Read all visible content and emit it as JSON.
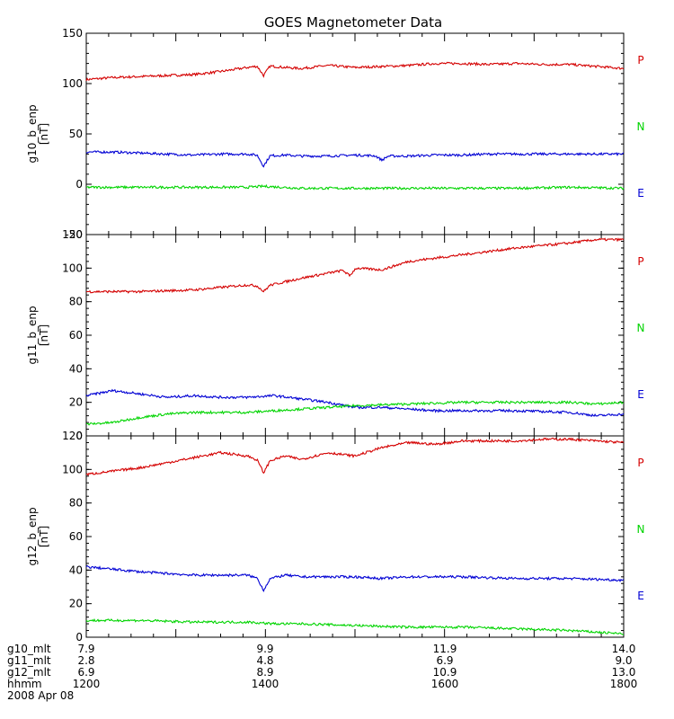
{
  "chart_data": {
    "type": "line",
    "title": "GOES Magnetometer Data",
    "x": {
      "hhmm_ticks": [
        "1200",
        "1400",
        "1600",
        "1800"
      ],
      "range_hhmm": [
        "1200",
        "1800"
      ],
      "date": "2008 Apr 08"
    },
    "rows": [
      {
        "label": "g10_mlt",
        "values": [
          "7.9",
          "9.9",
          "11.9",
          "14.0"
        ]
      },
      {
        "label": "g11_mlt",
        "values": [
          "2.8",
          "4.8",
          "6.9",
          "9.0"
        ]
      },
      {
        "label": "g12_mlt",
        "values": [
          "6.9",
          "8.9",
          "10.9",
          "13.0"
        ]
      },
      {
        "label": "hhmm",
        "values": [
          "1200",
          "1400",
          "1600",
          "1800"
        ]
      }
    ],
    "date_label": "2008 Apr 08",
    "colors": {
      "P": "#d40000",
      "N": "#00d400",
      "E": "#0000d4"
    },
    "panels": [
      {
        "ylabel": "g10_b_enp",
        "unit": "[nT]",
        "ylim": [
          -50,
          150
        ],
        "ticks": [
          "150",
          "100",
          "50",
          "0",
          "-50"
        ],
        "tick_values": [
          150,
          100,
          50,
          0,
          -50
        ],
        "legend": [
          "P",
          "N",
          "E"
        ],
        "series": [
          {
            "name": "P",
            "points": [
              [
                0,
                104
              ],
              [
                0.05,
                106
              ],
              [
                0.1,
                107
              ],
              [
                0.15,
                108
              ],
              [
                0.2,
                109
              ],
              [
                0.25,
                112
              ],
              [
                0.3,
                116
              ],
              [
                0.33,
                118
              ],
              [
                0.37,
                116
              ],
              [
                0.4,
                115
              ],
              [
                0.45,
                118
              ],
              [
                0.5,
                116
              ],
              [
                0.55,
                117
              ],
              [
                0.6,
                118
              ],
              [
                0.65,
                120
              ],
              [
                0.7,
                120
              ],
              [
                0.75,
                119
              ],
              [
                0.8,
                120
              ],
              [
                0.85,
                119
              ],
              [
                0.9,
                119
              ],
              [
                0.95,
                117
              ],
              [
                1,
                115
              ]
            ],
            "dips": [
              [
                0.33,
                -10
              ]
            ]
          },
          {
            "name": "E",
            "points": [
              [
                0,
                32
              ],
              [
                0.05,
                32
              ],
              [
                0.1,
                31
              ],
              [
                0.15,
                30
              ],
              [
                0.2,
                29
              ],
              [
                0.25,
                30
              ],
              [
                0.3,
                30
              ],
              [
                0.33,
                28
              ],
              [
                0.37,
                29
              ],
              [
                0.4,
                28
              ],
              [
                0.45,
                28
              ],
              [
                0.5,
                29
              ],
              [
                0.55,
                28
              ],
              [
                0.6,
                28
              ],
              [
                0.65,
                29
              ],
              [
                0.7,
                29
              ],
              [
                0.75,
                30
              ],
              [
                0.8,
                30
              ],
              [
                0.85,
                30
              ],
              [
                0.9,
                30
              ],
              [
                0.95,
                30
              ],
              [
                1,
                30
              ]
            ],
            "dips": [
              [
                0.33,
                -10
              ],
              [
                0.55,
                -4
              ]
            ]
          },
          {
            "name": "N",
            "points": [
              [
                0,
                -3
              ],
              [
                0.1,
                -3
              ],
              [
                0.2,
                -3
              ],
              [
                0.3,
                -3
              ],
              [
                0.33,
                -2
              ],
              [
                0.4,
                -4
              ],
              [
                0.5,
                -4
              ],
              [
                0.6,
                -4
              ],
              [
                0.7,
                -4
              ],
              [
                0.8,
                -4
              ],
              [
                0.9,
                -3
              ],
              [
                1,
                -4
              ]
            ],
            "dips": []
          }
        ]
      },
      {
        "ylabel": "g11_b_enp",
        "unit": "[nT]",
        "ylim": [
          0,
          120
        ],
        "ticks": [
          "120",
          "100",
          "80",
          "60",
          "40",
          "20",
          "0"
        ],
        "tick_values": [
          120,
          100,
          80,
          60,
          40,
          20,
          0
        ],
        "legend": [
          "P",
          "N",
          "E"
        ],
        "series": [
          {
            "name": "P",
            "points": [
              [
                0,
                86
              ],
              [
                0.1,
                86
              ],
              [
                0.2,
                87
              ],
              [
                0.3,
                90
              ],
              [
                0.33,
                89
              ],
              [
                0.4,
                94
              ],
              [
                0.45,
                97
              ],
              [
                0.5,
                100
              ],
              [
                0.55,
                99
              ],
              [
                0.6,
                104
              ],
              [
                0.7,
                108
              ],
              [
                0.8,
                112
              ],
              [
                0.9,
                115
              ],
              [
                0.95,
                117
              ],
              [
                1,
                117
              ]
            ],
            "dips": [
              [
                0.33,
                -3
              ],
              [
                0.49,
                -4
              ]
            ]
          },
          {
            "name": "E",
            "points": [
              [
                0,
                24
              ],
              [
                0.05,
                27
              ],
              [
                0.1,
                25
              ],
              [
                0.15,
                23
              ],
              [
                0.2,
                24
              ],
              [
                0.25,
                23
              ],
              [
                0.3,
                23
              ],
              [
                0.35,
                24
              ],
              [
                0.4,
                22
              ],
              [
                0.45,
                20
              ],
              [
                0.5,
                17
              ],
              [
                0.55,
                17
              ],
              [
                0.6,
                16
              ],
              [
                0.65,
                15
              ],
              [
                0.7,
                15
              ],
              [
                0.8,
                15
              ],
              [
                0.9,
                14
              ],
              [
                0.95,
                12
              ],
              [
                1,
                13
              ]
            ],
            "dips": []
          },
          {
            "name": "N",
            "points": [
              [
                0,
                7
              ],
              [
                0.05,
                8
              ],
              [
                0.1,
                11
              ],
              [
                0.15,
                13
              ],
              [
                0.2,
                14
              ],
              [
                0.3,
                14
              ],
              [
                0.35,
                15
              ],
              [
                0.4,
                16
              ],
              [
                0.5,
                18
              ],
              [
                0.6,
                19
              ],
              [
                0.7,
                20
              ],
              [
                0.8,
                20
              ],
              [
                0.9,
                20
              ],
              [
                0.95,
                19
              ],
              [
                1,
                20
              ]
            ],
            "dips": []
          }
        ]
      },
      {
        "ylabel": "g12_b_enp",
        "unit": "[nT]",
        "ylim": [
          0,
          120
        ],
        "ticks": [
          "120",
          "100",
          "80",
          "60",
          "40",
          "20",
          "0"
        ],
        "tick_values": [
          120,
          100,
          80,
          60,
          40,
          20,
          0
        ],
        "legend": [
          "P",
          "N",
          "E"
        ],
        "series": [
          {
            "name": "P",
            "points": [
              [
                0,
                97
              ],
              [
                0.05,
                99
              ],
              [
                0.1,
                101
              ],
              [
                0.15,
                104
              ],
              [
                0.2,
                107
              ],
              [
                0.25,
                110
              ],
              [
                0.3,
                108
              ],
              [
                0.33,
                104
              ],
              [
                0.37,
                108
              ],
              [
                0.4,
                106
              ],
              [
                0.45,
                110
              ],
              [
                0.5,
                108
              ],
              [
                0.55,
                113
              ],
              [
                0.6,
                116
              ],
              [
                0.65,
                115
              ],
              [
                0.7,
                117
              ],
              [
                0.75,
                117
              ],
              [
                0.8,
                117
              ],
              [
                0.85,
                118
              ],
              [
                0.9,
                118
              ],
              [
                0.95,
                117
              ],
              [
                1,
                116
              ]
            ],
            "dips": [
              [
                0.33,
                -6
              ]
            ]
          },
          {
            "name": "E",
            "points": [
              [
                0,
                42
              ],
              [
                0.1,
                39
              ],
              [
                0.2,
                37
              ],
              [
                0.3,
                37
              ],
              [
                0.33,
                34
              ],
              [
                0.37,
                37
              ],
              [
                0.4,
                36
              ],
              [
                0.5,
                36
              ],
              [
                0.55,
                35
              ],
              [
                0.6,
                36
              ],
              [
                0.7,
                36
              ],
              [
                0.8,
                35
              ],
              [
                0.9,
                35
              ],
              [
                1,
                34
              ]
            ],
            "dips": [
              [
                0.33,
                -6
              ]
            ]
          },
          {
            "name": "N",
            "points": [
              [
                0,
                10
              ],
              [
                0.1,
                10
              ],
              [
                0.2,
                9
              ],
              [
                0.3,
                9
              ],
              [
                0.35,
                8
              ],
              [
                0.4,
                8
              ],
              [
                0.5,
                7
              ],
              [
                0.6,
                6
              ],
              [
                0.7,
                6
              ],
              [
                0.8,
                5
              ],
              [
                0.9,
                4
              ],
              [
                0.95,
                3
              ],
              [
                1,
                2
              ]
            ],
            "dips": []
          }
        ]
      }
    ]
  }
}
